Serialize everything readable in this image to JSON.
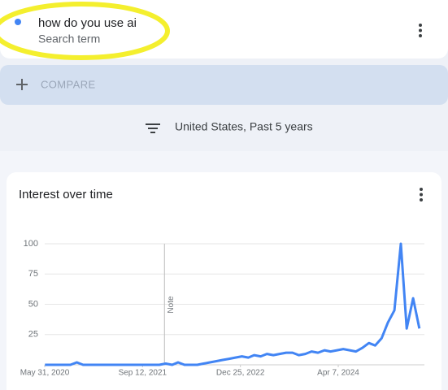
{
  "search": {
    "term": "how do you use ai",
    "kind": "Search term"
  },
  "compare": {
    "label": "COMPARE"
  },
  "filter": {
    "label": "United States, Past 5 years"
  },
  "chart_data": {
    "type": "line",
    "title": "Interest over time",
    "x": [
      "2020-06-01",
      "2020-07-01",
      "2020-08-01",
      "2020-09-01",
      "2020-10-01",
      "2020-11-01",
      "2020-12-01",
      "2021-01-01",
      "2021-02-01",
      "2021-03-01",
      "2021-04-01",
      "2021-05-01",
      "2021-06-01",
      "2021-07-01",
      "2021-08-01",
      "2021-09-01",
      "2021-10-01",
      "2021-11-01",
      "2021-12-01",
      "2022-01-01",
      "2022-02-01",
      "2022-03-01",
      "2022-04-01",
      "2022-05-01",
      "2022-06-01",
      "2022-07-01",
      "2022-08-01",
      "2022-09-01",
      "2022-10-01",
      "2022-11-01",
      "2022-12-01",
      "2023-01-01",
      "2023-02-01",
      "2023-03-01",
      "2023-04-01",
      "2023-05-01",
      "2023-06-01",
      "2023-07-01",
      "2023-08-01",
      "2023-09-01",
      "2023-10-01",
      "2023-11-01",
      "2023-12-01",
      "2024-01-01",
      "2024-02-01",
      "2024-03-01",
      "2024-04-01",
      "2024-05-01",
      "2024-06-01",
      "2024-07-01",
      "2024-08-01",
      "2024-09-01",
      "2024-10-01",
      "2024-11-01",
      "2024-12-01",
      "2025-01-01",
      "2025-02-01",
      "2025-03-01",
      "2025-04-01",
      "2025-05-01"
    ],
    "values": [
      0,
      0,
      0,
      0,
      0,
      2,
      0,
      0,
      0,
      0,
      0,
      0,
      0,
      0,
      0,
      0,
      0,
      0,
      0,
      1,
      0,
      2,
      0,
      0,
      0,
      1,
      2,
      3,
      4,
      5,
      6,
      7,
      6,
      8,
      7,
      9,
      8,
      9,
      10,
      10,
      8,
      9,
      11,
      10,
      12,
      11,
      12,
      13,
      12,
      11,
      14,
      18,
      16,
      22,
      35,
      45,
      100,
      30,
      55,
      30
    ],
    "color": "#4285f4",
    "xlim": [
      "2020-05-31",
      "2025-05-25"
    ],
    "xticks": [
      {
        "value": "2020-05-31",
        "label": "May 31, 2020"
      },
      {
        "value": "2021-09-12",
        "label": "Sep 12, 2021"
      },
      {
        "value": "2022-12-25",
        "label": "Dec 25, 2022"
      },
      {
        "value": "2024-04-07",
        "label": "Apr 7, 2024"
      }
    ],
    "ylim": [
      0,
      100
    ],
    "yticks": [
      25,
      50,
      75,
      100
    ],
    "grid": true,
    "note": {
      "label": "Note",
      "x": "2021-12-26"
    }
  }
}
